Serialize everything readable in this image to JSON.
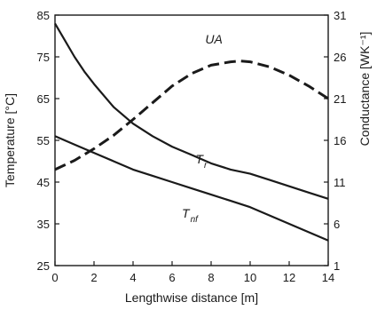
{
  "chart_data": {
    "type": "line",
    "xlabel": "Lengthwise distance [m]",
    "ylabel_left": "Temperature [°C]",
    "ylabel_right": "Conductance [WK⁻¹]",
    "xlim": [
      0,
      14
    ],
    "ylim_left": [
      25,
      85
    ],
    "ylim_right": [
      1,
      31
    ],
    "x_ticks": [
      0,
      2,
      4,
      6,
      8,
      10,
      12,
      14
    ],
    "y_left_ticks": [
      25,
      35,
      45,
      55,
      65,
      75,
      85
    ],
    "y_right_ticks": [
      1,
      6,
      11,
      16,
      21,
      26,
      31
    ],
    "grid": false,
    "series": [
      {
        "name": "T",
        "subscript": "r",
        "axis": "left",
        "style": "solid",
        "label_at": [
          7.2,
          49.5
        ],
        "x": [
          0,
          0.5,
          1,
          1.5,
          2,
          3,
          4,
          5,
          6,
          7,
          8,
          9,
          10,
          11,
          12,
          13,
          14
        ],
        "y": [
          83,
          79,
          75,
          71.5,
          68.5,
          63,
          59,
          56,
          53.5,
          51.5,
          49.5,
          48,
          47,
          45.5,
          44,
          42.5,
          41
        ]
      },
      {
        "name": "T",
        "subscript": "nf",
        "axis": "left",
        "style": "solid",
        "label_at": [
          6.5,
          36.5
        ],
        "x": [
          0,
          1,
          2,
          3,
          4,
          5,
          6,
          7,
          8,
          9,
          10,
          11,
          12,
          13,
          14
        ],
        "y": [
          56,
          54,
          52,
          50,
          48,
          46.5,
          45,
          43.5,
          42,
          40.5,
          39,
          37,
          35,
          33,
          31
        ]
      },
      {
        "name": "UA",
        "axis": "right",
        "style": "dashed",
        "label_at": [
          7.7,
          27.6
        ],
        "x": [
          0,
          1,
          2,
          3,
          4,
          5,
          6,
          7,
          8,
          9,
          9.5,
          10,
          11,
          12,
          13,
          14
        ],
        "y": [
          12.5,
          13.6,
          15,
          16.6,
          18.5,
          20.5,
          22.5,
          24,
          25,
          25.4,
          25.5,
          25.4,
          24.8,
          23.8,
          22.5,
          21
        ]
      }
    ]
  }
}
